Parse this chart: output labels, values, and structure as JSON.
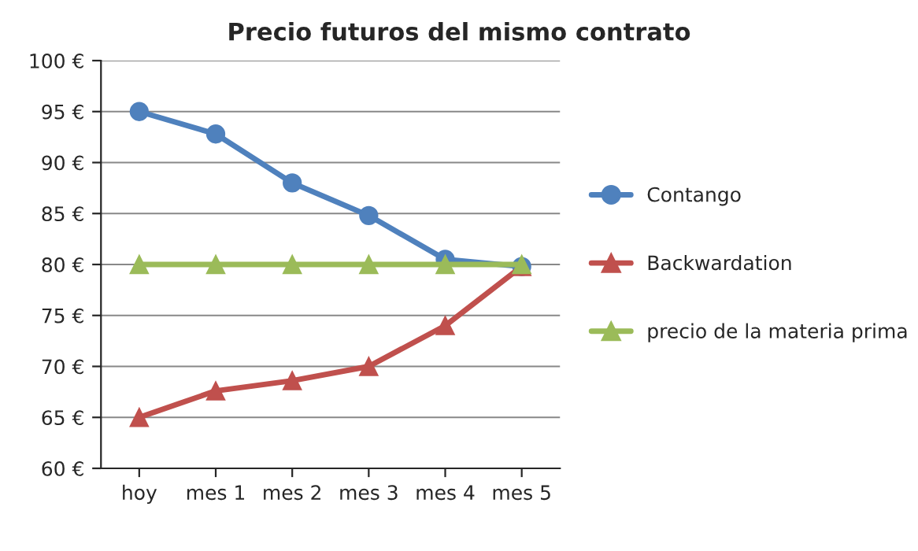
{
  "chart_data": {
    "type": "line",
    "title": "Precio futuros del mismo contrato",
    "categories": [
      "hoy",
      "mes 1",
      "mes 2",
      "mes 3",
      "mes 4",
      "mes 5"
    ],
    "series": [
      {
        "name": "Contango",
        "color": "#4f81bd",
        "marker": "circle",
        "values": [
          95,
          92.8,
          88,
          84.8,
          80.5,
          79.8
        ]
      },
      {
        "name": "Backwardation",
        "color": "#c0504d",
        "marker": "triangle",
        "values": [
          65,
          67.6,
          68.6,
          70,
          74,
          79.8
        ]
      },
      {
        "name": "precio de la materia prima",
        "color": "#9bbb59",
        "marker": "triangle",
        "values": [
          80,
          80,
          80,
          80,
          80,
          80
        ]
      }
    ],
    "ylim": [
      60,
      100
    ],
    "yticks": [
      {
        "value": 60,
        "label": "60 €"
      },
      {
        "value": 65,
        "label": "65 €"
      },
      {
        "value": 70,
        "label": "70 €"
      },
      {
        "value": 75,
        "label": "75 €"
      },
      {
        "value": 80,
        "label": "80 €"
      },
      {
        "value": 85,
        "label": "85 €"
      },
      {
        "value": 90,
        "label": "90 €"
      },
      {
        "value": 95,
        "label": "95 €"
      },
      {
        "value": 100,
        "label": "100 €"
      }
    ],
    "grid": "y",
    "legend": "right",
    "line_style": "solid"
  }
}
